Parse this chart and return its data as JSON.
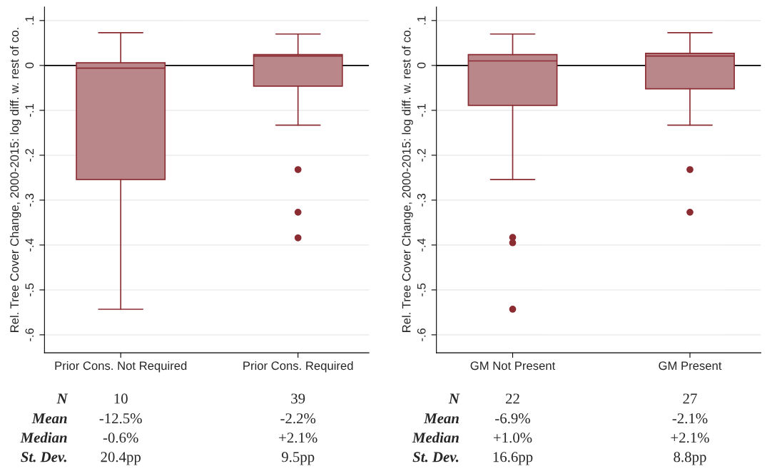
{
  "chart_data": [
    {
      "type": "box",
      "categories": [
        "Prior Cons. Not Required",
        "Prior Cons. Required"
      ],
      "ylabel": "Rel. Tree Cover Change, 2000-2015: log diff. w. rest of co.",
      "boxes": [
        {
          "low": -0.543,
          "q1": -0.254,
          "median": -0.006,
          "q3": 0.006,
          "high": 0.073
        },
        {
          "low": -0.133,
          "q1": -0.046,
          "median": 0.021,
          "q3": 0.024,
          "high": 0.07,
          "outliers": [
            -0.232,
            -0.327,
            -0.384
          ]
        }
      ],
      "color": "#b9868a",
      "ylim": [
        -0.64,
        0.13
      ],
      "yticks": [
        {
          "value": -0.6,
          "label": "-.6"
        },
        {
          "value": -0.5,
          "label": "-.5"
        },
        {
          "value": -0.4,
          "label": "-.4"
        },
        {
          "value": -0.3,
          "label": "-.3"
        },
        {
          "value": -0.2,
          "label": "-.2"
        },
        {
          "value": -0.1,
          "label": "-.1"
        },
        0,
        {
          "value": 0.1,
          "label": ".1"
        }
      ],
      "grid": "y",
      "ref_lines": [
        {
          "axis": "y",
          "value": 0,
          "color": "#000000"
        }
      ],
      "annotations": [
        "N",
        "10",
        "39",
        "Mean",
        "-12.5%",
        "-2.2%",
        "Median",
        "-0.6%",
        "+2.1%",
        "St. Dev.",
        "20.4pp",
        "9.5pp"
      ]
    },
    {
      "type": "box",
      "categories": [
        "GM Not Present",
        "GM Present"
      ],
      "ylabel": "Rel. Tree Cover Change, 2000-2015: log diff. w. rest of co.",
      "boxes": [
        {
          "low": -0.254,
          "q1": -0.089,
          "median": 0.01,
          "q3": 0.024,
          "high": 0.07,
          "outliers": [
            -0.383,
            -0.395,
            -0.543
          ]
        },
        {
          "low": -0.133,
          "q1": -0.052,
          "median": 0.021,
          "q3": 0.027,
          "high": 0.073,
          "outliers": [
            -0.232,
            -0.327
          ]
        }
      ],
      "color": "#b9868a",
      "ylim": [
        -0.64,
        0.13
      ],
      "yticks": [
        {
          "value": -0.6,
          "label": "-.6"
        },
        {
          "value": -0.5,
          "label": "-.5"
        },
        {
          "value": -0.4,
          "label": "-.4"
        },
        {
          "value": -0.3,
          "label": "-.3"
        },
        {
          "value": -0.2,
          "label": "-.2"
        },
        {
          "value": -0.1,
          "label": "-.1"
        },
        0,
        {
          "value": 0.1,
          "label": ".1"
        }
      ],
      "grid": "y",
      "ref_lines": [
        {
          "axis": "y",
          "value": 0,
          "color": "#000000"
        }
      ],
      "annotations": [
        "N",
        "22",
        "27",
        "Mean",
        "-6.9%",
        "-2.1%",
        "Median",
        "+1.0%",
        "+2.1%",
        "St. Dev.",
        "16.6pp",
        "8.8pp"
      ]
    }
  ]
}
